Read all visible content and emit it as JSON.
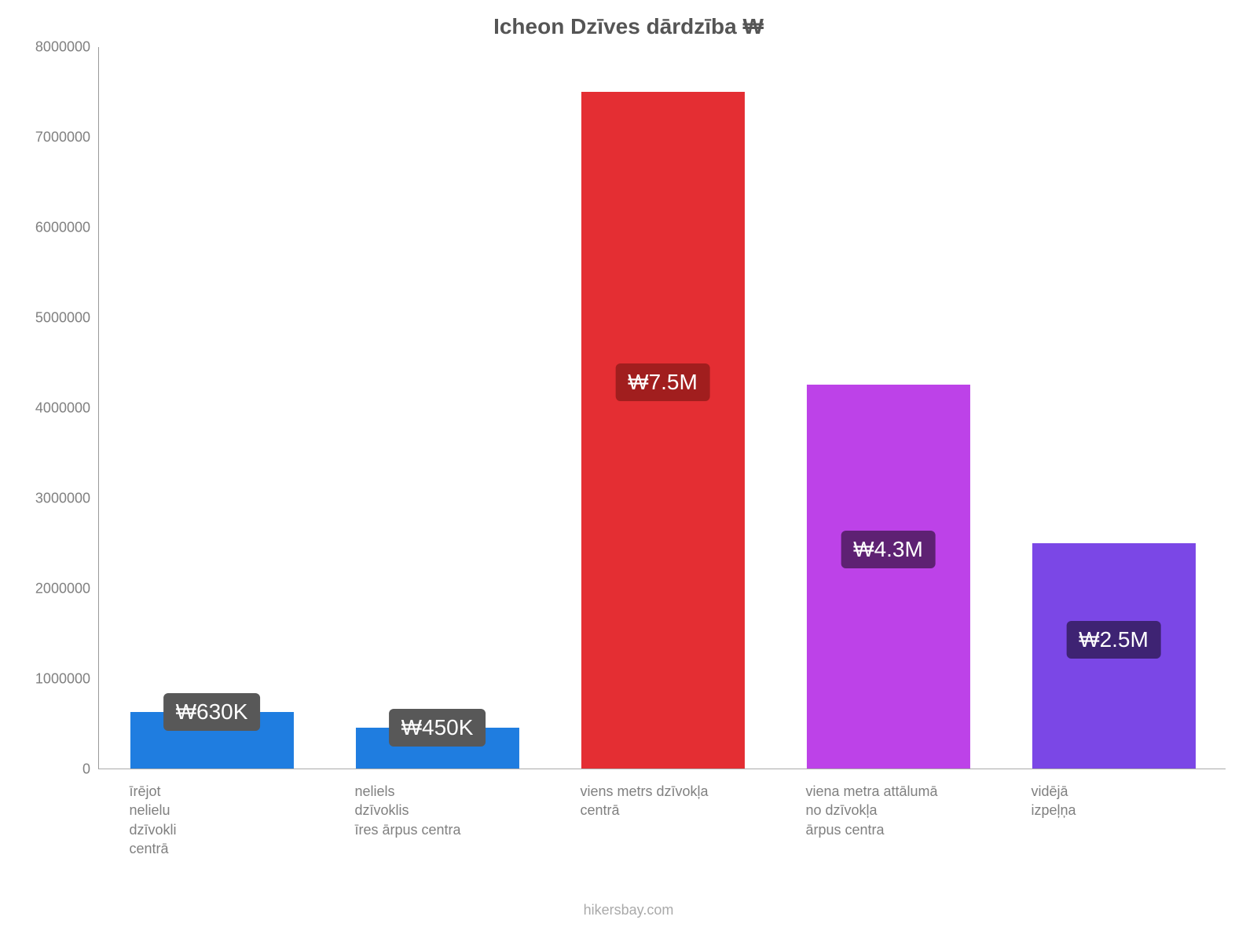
{
  "chart": {
    "type": "bar",
    "title": "Icheon Dzīves dārdzība ₩",
    "title_color": "#555555",
    "title_fontsize": 28,
    "background_color": "#ffffff",
    "y_axis": {
      "min": 0,
      "max": 8000000,
      "tick_step": 1000000,
      "ticks": [
        "0",
        "1000000",
        "2000000",
        "3000000",
        "4000000",
        "5000000",
        "6000000",
        "7000000",
        "8000000"
      ],
      "label_color": "#808080",
      "label_fontsize": 18
    },
    "x_labels_color": "#808080",
    "x_labels_fontsize": 18,
    "bar_width_ratio": 0.725,
    "bars": [
      {
        "value": 630000,
        "label": "₩630K",
        "color": "#1f7de0",
        "badge_bg": "#585858",
        "x_label": "īrējot\nnelielu\ndzīvokli\ncentrā"
      },
      {
        "value": 450000,
        "label": "₩450K",
        "color": "#1f7de0",
        "badge_bg": "#585858",
        "x_label": "neliels\ndzīvoklis\nīres ārpus centra"
      },
      {
        "value": 7500000,
        "label": "₩7.5M",
        "color": "#e42e33",
        "badge_bg": "#a11e1e",
        "x_label": "viens metrs dzīvokļa\ncentrā"
      },
      {
        "value": 4250000,
        "label": "₩4.3M",
        "color": "#bd42e8",
        "badge_bg": "#5e2173",
        "x_label": "viena metra attālumā\nno dzīvokļa\nārpus centra"
      },
      {
        "value": 2500000,
        "label": "₩2.5M",
        "color": "#7b47e6",
        "badge_bg": "#3e2373",
        "x_label": "vidējā\nizpeļņa"
      }
    ],
    "attribution": "hikersbay.com",
    "attribution_color": "#aaaaaa",
    "attribution_fontsize": 18
  }
}
